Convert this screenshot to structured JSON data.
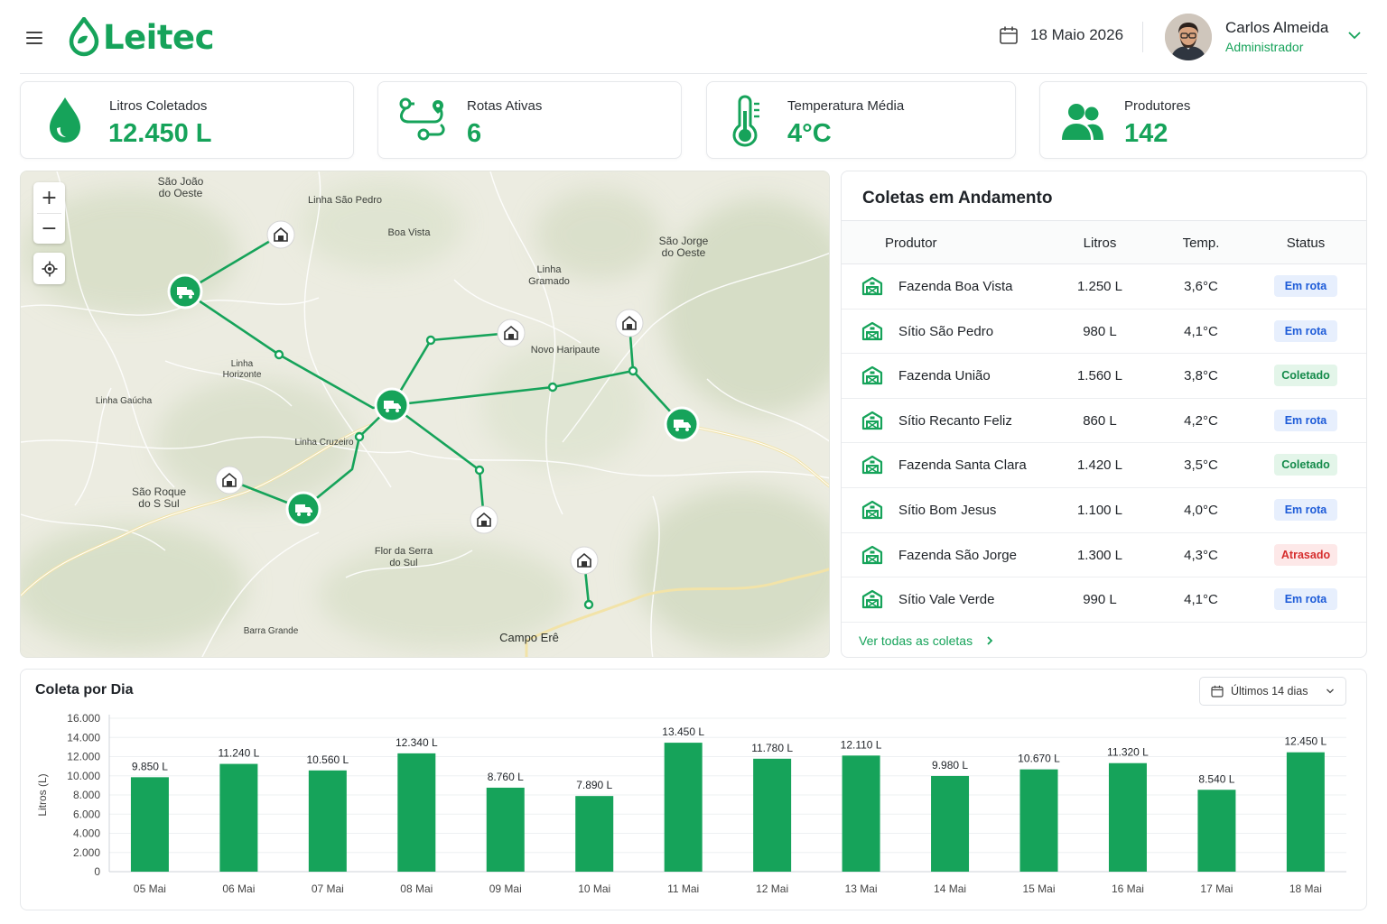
{
  "header": {
    "logo": "Leitec",
    "date": "18 Maio 2026",
    "user_name": "Carlos Almeida",
    "user_role": "Administrador"
  },
  "kpis": [
    {
      "label": "Litros Coletados",
      "value": "12.450 L",
      "icon": "milk-drop-icon"
    },
    {
      "label": "Rotas Ativas",
      "value": "6",
      "icon": "route-icon"
    },
    {
      "label": "Temperatura Média",
      "value": "4°C",
      "icon": "thermometer-icon"
    },
    {
      "label": "Produtores",
      "value": "142",
      "icon": "users-icon"
    }
  ],
  "map": {
    "zoom_in": "+",
    "zoom_out": "−",
    "places": [
      {
        "name": "São João\ndo Oeste"
      },
      {
        "name": "Linha São Pedro"
      },
      {
        "name": "Boa Vista"
      },
      {
        "name": "São Jorge\ndo Oeste"
      },
      {
        "name": "Linha\nGramado"
      },
      {
        "name": "Novo Haripaute"
      },
      {
        "name": "Linha\nHorizonte"
      },
      {
        "name": "Linha Gaúcha"
      },
      {
        "name": "Linha Cruzeiro"
      },
      {
        "name": "São Roque\ndo S Sul"
      },
      {
        "name": "Flor da Serra\ndo Sul"
      },
      {
        "name": "Barra Grande"
      },
      {
        "name": "Campo Erê"
      }
    ],
    "accent": "#16a35a"
  },
  "coletas": {
    "title": "Coletas em Andamento",
    "columns": {
      "produtor": "Produtor",
      "litros": "Litros",
      "temp": "Temp.",
      "status": "Status"
    },
    "rows": [
      {
        "produtor": "Fazenda Boa Vista",
        "litros": "1.250 L",
        "temp": "3,6°C",
        "status": "Em rota",
        "status_type": "emrota"
      },
      {
        "produtor": "Sítio São Pedro",
        "litros": "980 L",
        "temp": "4,1°C",
        "status": "Em rota",
        "status_type": "emrota"
      },
      {
        "produtor": "Fazenda União",
        "litros": "1.560 L",
        "temp": "3,8°C",
        "status": "Coletado",
        "status_type": "coletado"
      },
      {
        "produtor": "Sítio Recanto Feliz",
        "litros": "860 L",
        "temp": "4,2°C",
        "status": "Em rota",
        "status_type": "emrota"
      },
      {
        "produtor": "Fazenda Santa Clara",
        "litros": "1.420 L",
        "temp": "3,5°C",
        "status": "Coletado",
        "status_type": "coletado"
      },
      {
        "produtor": "Sítio Bom Jesus",
        "litros": "1.100 L",
        "temp": "4,0°C",
        "status": "Em rota",
        "status_type": "emrota"
      },
      {
        "produtor": "Fazenda São Jorge",
        "litros": "1.300 L",
        "temp": "4,3°C",
        "status": "Atrasado",
        "status_type": "atrasado"
      },
      {
        "produtor": "Sítio Vale Verde",
        "litros": "990 L",
        "temp": "4,1°C",
        "status": "Em rota",
        "status_type": "emrota"
      }
    ],
    "ver_todas": "Ver todas as coletas"
  },
  "chart": {
    "title": "Coleta por Dia",
    "range_label": "Últimos 14 dias"
  },
  "chart_data": {
    "type": "bar",
    "title": "Coleta por Dia",
    "ylabel": "Litros (L)",
    "xlabel": "",
    "ylim": [
      0,
      16000
    ],
    "yticks": [
      0,
      2000,
      4000,
      6000,
      8000,
      10000,
      12000,
      14000,
      16000
    ],
    "ytick_labels": [
      "0",
      "2.000",
      "4.000",
      "6.000",
      "8.000",
      "10.000",
      "12.000",
      "14.000",
      "16.000"
    ],
    "categories": [
      "05 Mai",
      "06 Mai",
      "07 Mai",
      "08 Mai",
      "09 Mai",
      "10 Mai",
      "11 Mai",
      "12 Mai",
      "13 Mai",
      "14 Mai",
      "15 Mai",
      "16 Mai",
      "17 Mai",
      "18 Mai"
    ],
    "values": [
      9850,
      11240,
      10560,
      12340,
      8760,
      7890,
      13450,
      11780,
      12110,
      9980,
      10670,
      11320,
      8540,
      12450
    ],
    "data_labels": [
      "9.850 L",
      "11.240 L",
      "10.560 L",
      "12.340 L",
      "8.760 L",
      "7.890 L",
      "13.450 L",
      "11.780 L",
      "12.110 L",
      "9.980 L",
      "10.670 L",
      "11.320 L",
      "8.540 L",
      "12.450 L"
    ],
    "grid": true,
    "color": "#16a35a"
  }
}
